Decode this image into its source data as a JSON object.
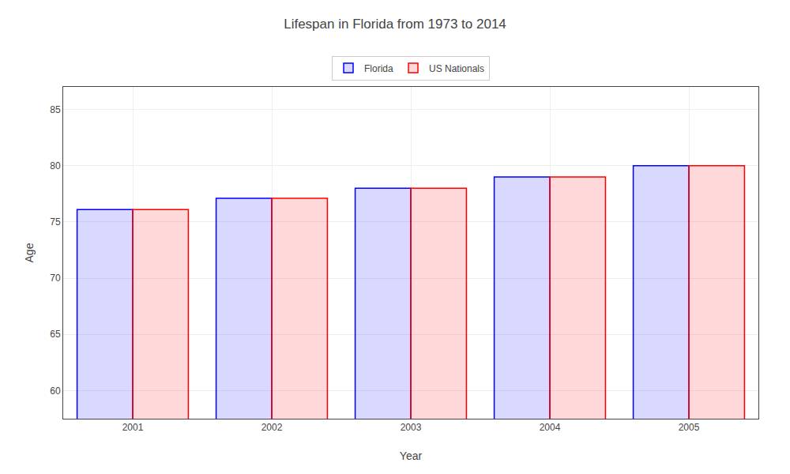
{
  "chart_data": {
    "type": "bar",
    "title": "Lifespan in Florida from 1973 to 2014",
    "xlabel": "Year",
    "ylabel": "Age",
    "categories": [
      "2001",
      "2002",
      "2003",
      "2004",
      "2005"
    ],
    "series": [
      {
        "name": "Florida",
        "color": "#0000ff",
        "values": [
          76.1,
          77.1,
          78.0,
          79.0,
          80.0
        ]
      },
      {
        "name": "US Nationals",
        "color": "#ff0000",
        "values": [
          76.1,
          77.1,
          78.0,
          79.0,
          80.0
        ]
      }
    ],
    "ylim": [
      57.5,
      87
    ],
    "yticks": [
      60,
      65,
      70,
      75,
      80,
      85
    ],
    "grid": true,
    "legend": "top"
  }
}
